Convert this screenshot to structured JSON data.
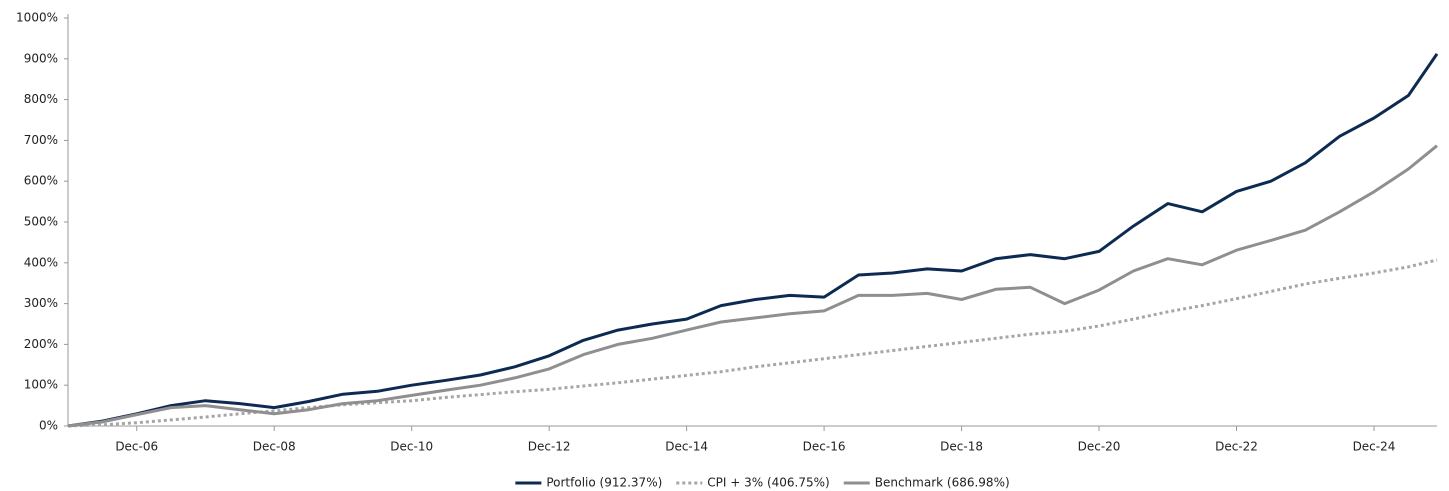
{
  "chart_data": {
    "type": "line",
    "x": [
      "2005-12",
      "2006-06",
      "2006-12",
      "2007-06",
      "2007-12",
      "2008-06",
      "2008-12",
      "2009-06",
      "2009-12",
      "2010-06",
      "2010-12",
      "2011-06",
      "2011-12",
      "2012-06",
      "2012-12",
      "2013-06",
      "2013-12",
      "2014-06",
      "2014-12",
      "2015-06",
      "2015-12",
      "2016-06",
      "2016-12",
      "2017-06",
      "2017-12",
      "2018-06",
      "2018-12",
      "2019-06",
      "2019-12",
      "2020-06",
      "2020-12",
      "2021-06",
      "2021-12",
      "2022-06",
      "2022-12",
      "2023-06",
      "2023-12",
      "2024-06",
      "2024-12",
      "2025-06",
      "2025-11"
    ],
    "xlim": [
      "2005-12",
      "2025-11"
    ],
    "xticks": [
      {
        "value": "2006-12",
        "label": "Dec-06"
      },
      {
        "value": "2008-12",
        "label": "Dec-08"
      },
      {
        "value": "2010-12",
        "label": "Dec-10"
      },
      {
        "value": "2012-12",
        "label": "Dec-12"
      },
      {
        "value": "2014-12",
        "label": "Dec-14"
      },
      {
        "value": "2016-12",
        "label": "Dec-16"
      },
      {
        "value": "2018-12",
        "label": "Dec-18"
      },
      {
        "value": "2020-12",
        "label": "Dec-20"
      },
      {
        "value": "2022-12",
        "label": "Dec-22"
      },
      {
        "value": "2024-12",
        "label": "Dec-24"
      }
    ],
    "ylim": [
      0,
      1000
    ],
    "yticks": [
      {
        "value": 0,
        "label": "0%"
      },
      {
        "value": 100,
        "label": "100%"
      },
      {
        "value": 200,
        "label": "200%"
      },
      {
        "value": 300,
        "label": "300%"
      },
      {
        "value": 400,
        "label": "400%"
      },
      {
        "value": 500,
        "label": "500%"
      },
      {
        "value": 600,
        "label": "600%"
      },
      {
        "value": 700,
        "label": "700%"
      },
      {
        "value": 800,
        "label": "800%"
      },
      {
        "value": 900,
        "label": "900%"
      },
      {
        "value": 1000,
        "label": "1000%"
      }
    ],
    "legend": "bottom",
    "series": [
      {
        "name": "Portfolio (912.37%)",
        "color": "#0d2b52",
        "dash": "solid",
        "values": [
          0,
          12,
          30,
          50,
          62,
          55,
          45,
          60,
          78,
          85,
          100,
          112,
          125,
          145,
          172,
          210,
          235,
          250,
          262,
          295,
          310,
          320,
          316,
          370,
          375,
          385,
          380,
          410,
          420,
          410,
          428,
          490,
          545,
          525,
          575,
          600,
          645,
          710,
          755,
          810,
          912
        ]
      },
      {
        "name": "CPI + 3% (406.75%)",
        "color": "#a6a6a6",
        "dash": "dotted",
        "values": [
          0,
          3,
          8,
          15,
          22,
          30,
          37,
          45,
          52,
          57,
          62,
          70,
          77,
          84,
          90,
          98,
          106,
          115,
          124,
          133,
          145,
          155,
          165,
          175,
          185,
          195,
          205,
          215,
          225,
          232,
          245,
          262,
          280,
          295,
          312,
          330,
          348,
          362,
          375,
          390,
          407
        ]
      },
      {
        "name": "Benchmark (686.98%)",
        "color": "#8f8f8f",
        "dash": "solid",
        "values": [
          0,
          10,
          28,
          45,
          50,
          40,
          30,
          40,
          55,
          62,
          75,
          88,
          100,
          118,
          140,
          175,
          200,
          215,
          235,
          255,
          265,
          275,
          282,
          320,
          320,
          325,
          310,
          335,
          340,
          300,
          333,
          380,
          410,
          395,
          431,
          455,
          480,
          525,
          574,
          630,
          687
        ]
      }
    ]
  }
}
